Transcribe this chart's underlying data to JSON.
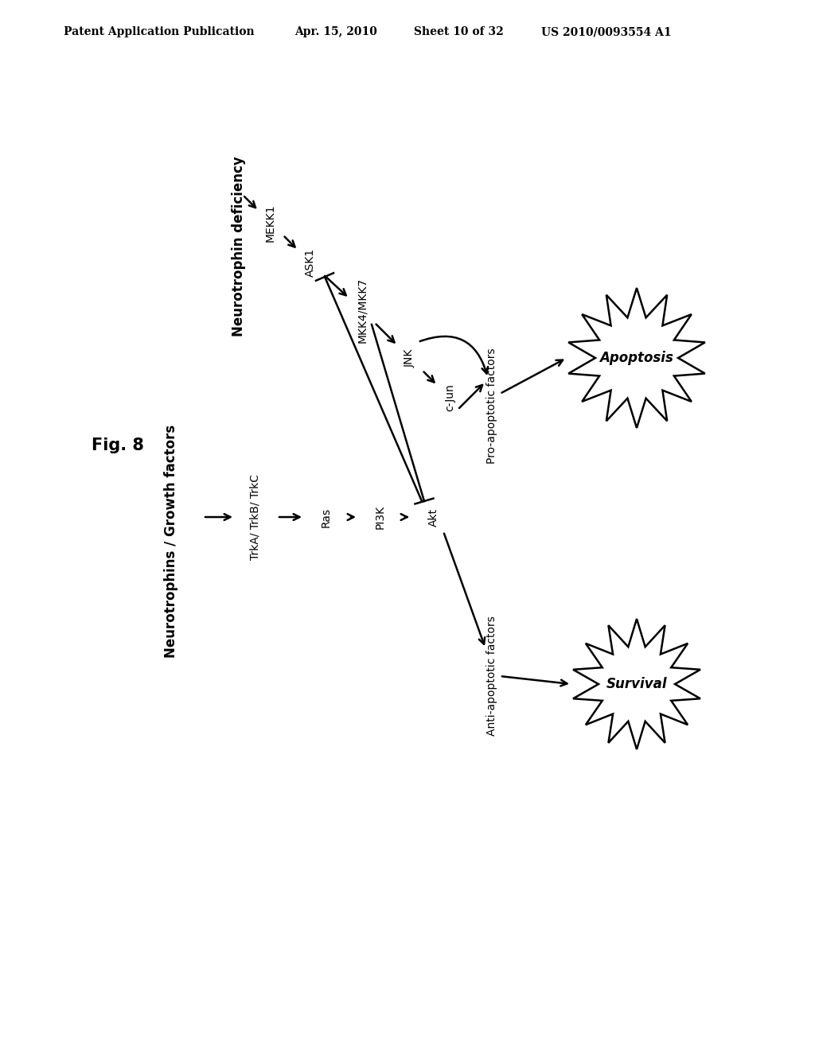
{
  "background_color": "#ffffff",
  "header_text": "Patent Application Publication",
  "header_date": "Apr. 15, 2010",
  "header_sheet": "Sheet 10 of 32",
  "header_patent": "US 2010/0093554 A1",
  "fig_label": "Fig. 8",
  "title_top": "Neurotrophin deficiency",
  "title_bottom": "Neurotrophins / Growth factors",
  "pathway_top": [
    "MEKK1",
    "ASK1",
    "MKK4/MKK7",
    "JNK",
    "c-Jun"
  ],
  "pathway_bottom": [
    "TrkA/ TrkB/ TrkC",
    "Ras",
    "PI3K",
    "Akt"
  ],
  "outcome_top": "Pro-apoptotic factors",
  "outcome_bottom": "Anti-apoptotic factors",
  "result_top": "Apoptosis",
  "result_bottom": "Survival",
  "font_color": "#000000",
  "line_color": "#000000",
  "font_size_header": 10,
  "font_size_title": 12,
  "font_size_node": 10,
  "font_size_outcome": 10,
  "font_size_result": 12,
  "font_size_fig": 15
}
